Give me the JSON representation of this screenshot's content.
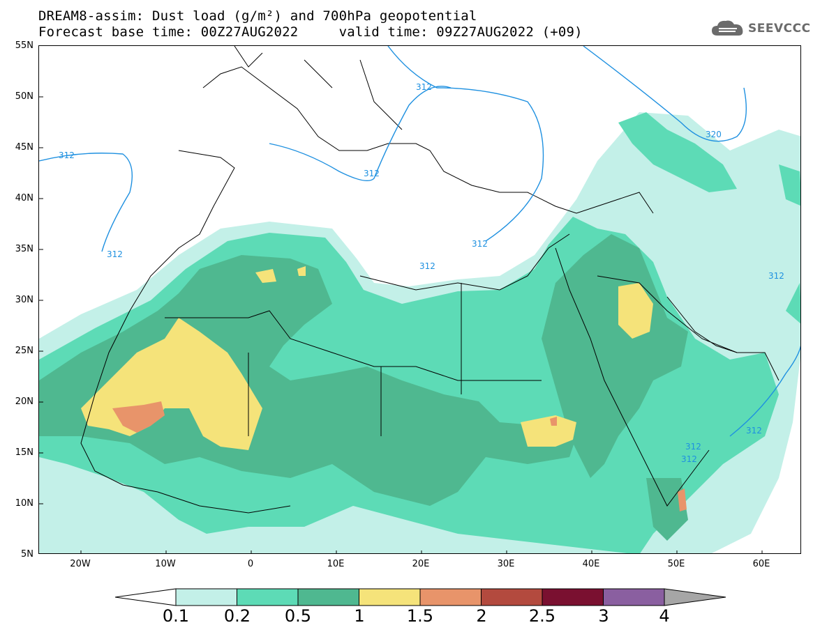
{
  "title": {
    "line1": "DREAM8-assim: Dust load (g/m²) and 700hPa geopotential",
    "line2": "Forecast base time: 00Z27AUG2022     valid time: 09Z27AUG2022 (+09)"
  },
  "logo": {
    "text": "SEEVCCC",
    "icon": "cloud-icon"
  },
  "axes": {
    "lat_labels": [
      "55N",
      "50N",
      "45N",
      "40N",
      "35N",
      "30N",
      "25N",
      "20N",
      "15N",
      "10N",
      "5N"
    ],
    "lon_labels": [
      "20W",
      "10W",
      "0",
      "10E",
      "20E",
      "30E",
      "40E",
      "50E",
      "60E"
    ]
  },
  "contours": {
    "labels": [
      "312",
      "312",
      "312",
      "312",
      "312",
      "312",
      "320",
      "312",
      "312",
      "312",
      "312"
    ],
    "color": "#1e90e0"
  },
  "legend": {
    "levels": [
      "0.1",
      "0.2",
      "0.5",
      "1",
      "1.5",
      "2",
      "2.5",
      "3",
      "4"
    ],
    "colors": [
      "#c3f0e8",
      "#5ddbb6",
      "#4fb890",
      "#f5e37a",
      "#e8946a",
      "#b34a3e",
      "#7a1030",
      "#8a5fa0",
      "#a6a6a6"
    ]
  }
}
